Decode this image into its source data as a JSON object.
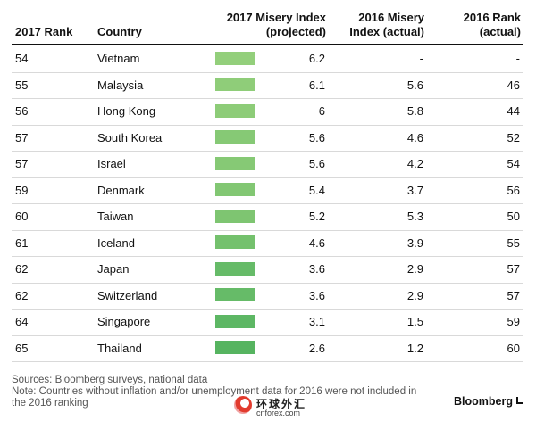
{
  "chart_data": {
    "type": "table",
    "columns": [
      "2017 Rank",
      "Country",
      "2017 Misery Index (projected)",
      "2016 Misery Index (actual)",
      "2016 Rank (actual)"
    ],
    "header": {
      "rank2017": "2017 Rank",
      "country": "Country",
      "p17_line1": "2017 Misery Index",
      "p17_line2": "(projected)",
      "a16_line1": "2016 Misery",
      "a16_line2": "Index (actual)",
      "r16_line1": "2016 Rank",
      "r16_line2": "(actual)"
    },
    "rows": [
      {
        "rank2017": "54",
        "country": "Vietnam",
        "misery2017": "6.2",
        "misery2016": "-",
        "rank2016": "-"
      },
      {
        "rank2017": "55",
        "country": "Malaysia",
        "misery2017": "6.1",
        "misery2016": "5.6",
        "rank2016": "46"
      },
      {
        "rank2017": "56",
        "country": "Hong Kong",
        "misery2017": "6",
        "misery2016": "5.8",
        "rank2016": "44"
      },
      {
        "rank2017": "57",
        "country": "South Korea",
        "misery2017": "5.6",
        "misery2016": "4.6",
        "rank2016": "52"
      },
      {
        "rank2017": "57",
        "country": "Israel",
        "misery2017": "5.6",
        "misery2016": "4.2",
        "rank2016": "54"
      },
      {
        "rank2017": "59",
        "country": "Denmark",
        "misery2017": "5.4",
        "misery2016": "3.7",
        "rank2016": "56"
      },
      {
        "rank2017": "60",
        "country": "Taiwan",
        "misery2017": "5.2",
        "misery2016": "5.3",
        "rank2016": "50"
      },
      {
        "rank2017": "61",
        "country": "Iceland",
        "misery2017": "4.6",
        "misery2016": "3.9",
        "rank2016": "55"
      },
      {
        "rank2017": "62",
        "country": "Japan",
        "misery2017": "3.6",
        "misery2016": "2.9",
        "rank2016": "57"
      },
      {
        "rank2017": "62",
        "country": "Switzerland",
        "misery2017": "3.6",
        "misery2016": "2.9",
        "rank2016": "57"
      },
      {
        "rank2017": "64",
        "country": "Singapore",
        "misery2017": "3.1",
        "misery2016": "1.5",
        "rank2016": "59"
      },
      {
        "rank2017": "65",
        "country": "Thailand",
        "misery2017": "2.6",
        "misery2016": "1.2",
        "rank2016": "60"
      }
    ],
    "heat_colors": [
      "#93cf7b",
      "#8fcd79",
      "#8dcc78",
      "#86c975",
      "#86c975",
      "#82c773",
      "#7ec571",
      "#74c16d",
      "#66bb68",
      "#66bb68",
      "#5db764",
      "#56b460"
    ]
  },
  "footer": {
    "sources": "Sources: Bloomberg surveys, national data",
    "note_line1": "Note: Countries without inflation and/or unemployment data for 2016 were not included in",
    "note_line2": "the 2016 ranking",
    "brand": "Bloomberg",
    "watermark_cn": "环球外汇",
    "watermark_url": "cnforex.com"
  }
}
